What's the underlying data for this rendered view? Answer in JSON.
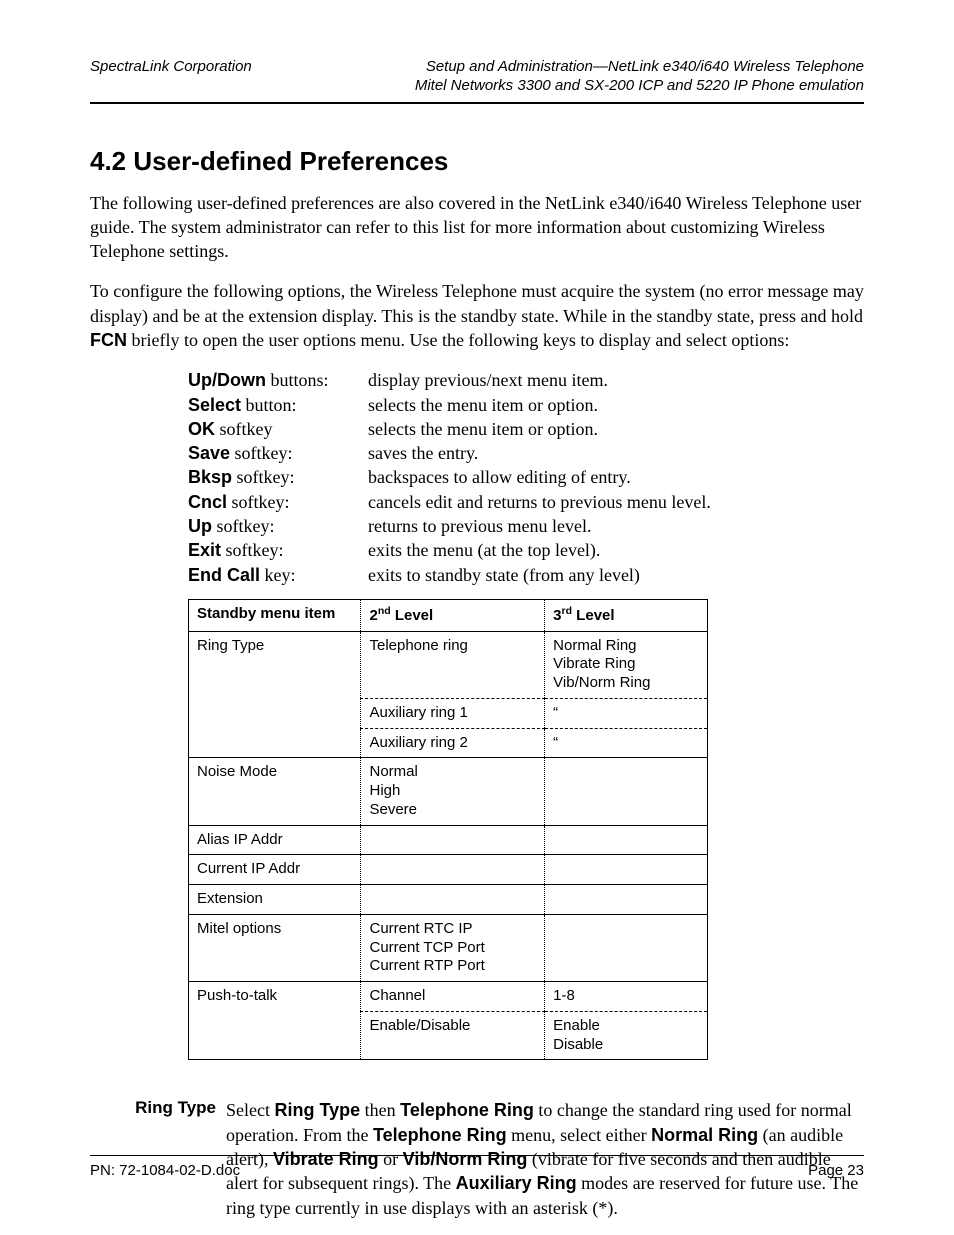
{
  "header": {
    "left": "SpectraLink Corporation",
    "right1": "Setup and Administration—NetLink e340/i640 Wireless Telephone",
    "right2": "Mitel Networks 3300 and SX-200 ICP and 5220 IP Phone emulation"
  },
  "heading": "4.2   User-defined Preferences",
  "para1": "The following user-defined preferences are also covered in the NetLink e340/i640 Wireless Telephone user guide. The system administrator can refer to this list for more information about customizing Wireless Telephone settings.",
  "para2_a": "To configure the following options, the Wireless Telephone must acquire the system (no error message may display) and be at the extension display. This is the standby state. While in the standby state, press and hold ",
  "para2_fcn": "FCN",
  "para2_b": " briefly to open the user options menu. Use the following keys to display and select options:",
  "keys": [
    {
      "name": "Up/Down",
      "suffix": " buttons:",
      "desc": "display previous/next menu item."
    },
    {
      "name": "Select",
      "suffix": " button:",
      "desc": "selects the menu item or option."
    },
    {
      "name": "OK",
      "suffix": " softkey",
      "desc": "selects the menu item or option."
    },
    {
      "name": "Save",
      "suffix": " softkey:",
      "desc": "saves the entry."
    },
    {
      "name": "Bksp",
      "suffix": " softkey:",
      "desc": "backspaces to allow editing of entry."
    },
    {
      "name": "Cncl",
      "suffix": " softkey:",
      "desc": "cancels edit and returns to previous menu level."
    },
    {
      "name": "Up",
      "suffix": " softkey:",
      "desc": "returns to previous menu level."
    },
    {
      "name": "Exit",
      "suffix": " softkey:",
      "desc": "exits the menu (at the top level)."
    },
    {
      "name": "End Call",
      "suffix": " key:",
      "desc": "exits to standby state (from any level)"
    }
  ],
  "table": {
    "h1": "Standby menu item",
    "h2_a": "2",
    "h2_b": "nd",
    "h2_c": " Level",
    "h3_a": "3",
    "h3_b": "rd",
    "h3_c": " Level",
    "ringtype": "Ring Type",
    "tel_ring": "Telephone ring",
    "tel_ring_opts": "Normal Ring\nVibrate Ring\nVib/Norm Ring",
    "aux1": "Auxiliary ring 1",
    "aux1_opts": "“",
    "aux2": "Auxiliary ring 2",
    "aux2_opts": "“",
    "noise": "Noise Mode",
    "noise_opts": "Normal\nHigh\nSevere",
    "alias": "Alias IP Addr",
    "current": "Current IP Addr",
    "ext": "Extension",
    "mitel": "Mitel options",
    "mitel_opts": "Current RTC IP\nCurrent TCP Port\nCurrent RTP Port",
    "ptt": "Push-to-talk",
    "channel": "Channel",
    "channel_opts": "1-8",
    "enable": "Enable/Disable",
    "enable_opts": "Enable\nDisable"
  },
  "ring": {
    "label": "Ring Type",
    "t1": "Select ",
    "b1": "Ring Type",
    "t2": " then ",
    "b2": "Telephone Ring",
    "t3": " to change the standard ring used for normal operation. From the ",
    "b3": "Telephone Ring",
    "t4": " menu, select either ",
    "b4": "Normal Ring",
    "t5": " (an audible alert), ",
    "b5": "Vibrate Ring",
    "t6": " or ",
    "b6": "Vib/Norm Ring",
    "t7": " (vibrate for five seconds and then audible alert for subsequent rings). The ",
    "b7": "Auxiliary Ring",
    "t8": " modes are reserved for future use. The ring type currently in use displays with an asterisk (*)."
  },
  "footer": {
    "left": "PN: 72-1084-02-D.doc",
    "right": "Page 23"
  }
}
